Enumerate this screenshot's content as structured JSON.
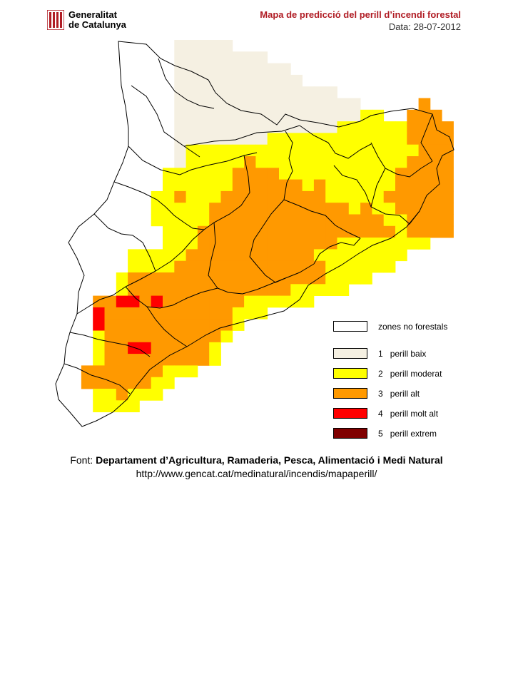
{
  "header": {
    "logo_line1": "Generalitat",
    "logo_line2": "de Catalunya",
    "title": "Mapa de predicció del perill d’incendi forestal",
    "date": "Data: 28-07-2012"
  },
  "legend": [
    {
      "code": "",
      "label": "zones no forestals",
      "color": "#ffffff"
    },
    {
      "code": "1",
      "label": "perill baix",
      "color": "#f5f0e2"
    },
    {
      "code": "2",
      "label": "perill moderat",
      "color": "#ffff00"
    },
    {
      "code": "3",
      "label": "perill alt",
      "color": "#ff9900"
    },
    {
      "code": "4",
      "label": "perill molt alt",
      "color": "#ff0000"
    },
    {
      "code": "5",
      "label": "perill extrem",
      "color": "#800000"
    }
  ],
  "footer": {
    "source_prefix": "Font:",
    "source": "Departament d’Agricultura, Ramaderia, Pesca, Alimentació i Medi Natural",
    "url": "http://www.gencat.cat/medinatural/incendis/mapaperill/"
  },
  "colors": {
    "title_red": "#b01c24",
    "outline": "#000000"
  }
}
